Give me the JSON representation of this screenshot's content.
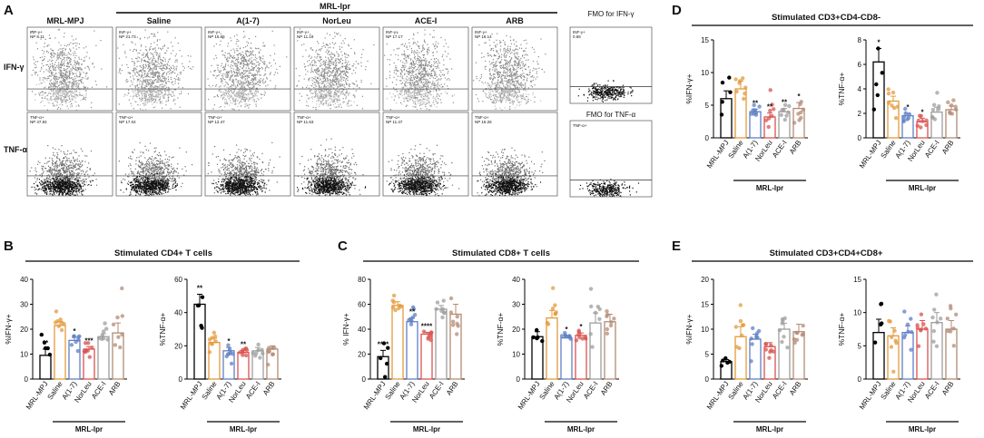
{
  "colors": {
    "mpj": "#000000",
    "saline": "#e39a3c",
    "a17": "#5f7fc6",
    "norleu": "#d9534f",
    "acei": "#9e9e9e",
    "arb": "#b38b74"
  },
  "panel_a": {
    "letter": "A",
    "strain_mpj": "MRL-MPJ",
    "strain_lpr": "MRL-lpr",
    "groups": [
      "Saline",
      "A(1-7)",
      "NorLeu",
      "ACE-I",
      "ARB"
    ],
    "row_labels": [
      "IFN-γ",
      "TNF-α"
    ],
    "fmo_titles": [
      "FMO for IFN-γ",
      "FMO for TNF-α"
    ],
    "ifn_gate_labels": [
      "INF-γ+",
      "INF-γ+",
      "INF-γ+",
      "INF-γ+",
      "INF-γ+",
      "INF-γ+"
    ],
    "tnf_gate_labels": [
      "TNF-α+",
      "TNF-α+",
      "TNF-α+",
      "TNF-α+",
      "TNF-α+",
      "TNF-α+"
    ],
    "ifn_values": [
      "NP 8.11",
      "NP 21.73",
      "NP 15.66",
      "NP 11.18",
      "NP 17.17",
      "NP 18.14"
    ],
    "tnf_values": [
      "NP 47.84",
      "NP 17.04",
      "NP 12.47",
      "NP 11.63",
      "NP 11.47",
      "NP 15.26"
    ],
    "fmo_ifn_label": "INF-γ+",
    "fmo_ifn_value": "0.66",
    "fmo_tnf_label": "TNF-α+"
  },
  "panel_b_title": "Stimulated CD4+ T cells",
  "panel_c_title": "Stimulated CD8+ T cells",
  "panel_d_title": "Stimulated CD3+CD4-CD8-",
  "panel_e_title": "Stimulated CD3+CD4+CD8+",
  "chart_data": [
    {
      "panel": "B",
      "type": "bar",
      "title": "Stimulated CD4+ T cells",
      "ylabel": "%IFN-γ+",
      "ylim": [
        0,
        40
      ],
      "yticks": [
        "0",
        "10",
        "20",
        "30",
        "40"
      ],
      "categories": [
        "MRL-MPJ",
        "Saline",
        "A(1-7)",
        "NorLeu",
        "ACE-I",
        "ARB"
      ],
      "group_label": "MRL-lpr",
      "values": [
        9.5,
        21.5,
        15.5,
        12,
        17,
        18.5
      ],
      "errors": [
        2.5,
        1.5,
        1.2,
        1,
        1.2,
        4
      ],
      "significance": [
        "**",
        "",
        "*",
        "***",
        "",
        ""
      ]
    },
    {
      "panel": "B",
      "type": "bar",
      "title": "",
      "ylabel": "%TNF-α+",
      "ylim": [
        0,
        60
      ],
      "yticks": [
        "0",
        "20",
        "40",
        "60"
      ],
      "categories": [
        "MRL-MPJ",
        "Saline",
        "A(1-7)",
        "NorLeu",
        "ACE-I",
        "ARB"
      ],
      "group_label": "MRL-lpr",
      "values": [
        45,
        22,
        17,
        16,
        17,
        18
      ],
      "errors": [
        6,
        2.5,
        2,
        1.2,
        2,
        2
      ],
      "significance": [
        "**",
        "",
        "*",
        "**",
        "",
        ""
      ]
    },
    {
      "panel": "C",
      "type": "bar",
      "title": "Stimulated CD8+ T cells",
      "ylabel": "% IFN-γ+",
      "ylim": [
        0,
        80
      ],
      "yticks": [
        "0",
        "20",
        "40",
        "60",
        "80"
      ],
      "categories": [
        "MRL-MPJ",
        "Saline",
        "A(1-7)",
        "NorLeu",
        "ACE-I",
        "ARB"
      ],
      "group_label": "MRL-lpr",
      "values": [
        18,
        59,
        46,
        36,
        56,
        52
      ],
      "errors": [
        5,
        3,
        3,
        1.5,
        3,
        8
      ],
      "significance": [
        "****",
        "",
        "**",
        "****",
        "",
        ""
      ]
    },
    {
      "panel": "C",
      "type": "bar",
      "title": "",
      "ylabel": "%TNF-α+",
      "ylim": [
        0,
        40
      ],
      "yticks": [
        "0",
        "10",
        "20",
        "30",
        "40"
      ],
      "categories": [
        "MRL-MPJ",
        "Saline",
        "A(1-7)",
        "NorLeu",
        "ACE-I",
        "ARB"
      ],
      "group_label": "MRL-lpr",
      "values": [
        17,
        24.5,
        16.5,
        17.5,
        22.5,
        23
      ],
      "errors": [
        2,
        3,
        1,
        1,
        4,
        3
      ],
      "significance": [
        "",
        "",
        "*",
        "*",
        "",
        ""
      ]
    },
    {
      "panel": "D",
      "type": "bar",
      "title": "Stimulated CD3+CD4-CD8-",
      "ylabel": "%IFN-γ+",
      "ylim": [
        0,
        15
      ],
      "yticks": [
        "0",
        "5",
        "10",
        "15"
      ],
      "categories": [
        "MRL-MPJ",
        "Saline",
        "A(1-7)",
        "NorLeu",
        "ACE-I",
        "ARB"
      ],
      "group_label": "MRL-lpr",
      "values": [
        6,
        7.5,
        4,
        3.2,
        4,
        4.5
      ],
      "errors": [
        1.2,
        1.2,
        0.4,
        0.6,
        0.5,
        0.9
      ],
      "significance": [
        "",
        "",
        "**",
        "**",
        "**",
        "*"
      ]
    },
    {
      "panel": "D",
      "type": "bar",
      "title": "",
      "ylabel": "%TNF-α+",
      "ylim": [
        0,
        8
      ],
      "yticks": [
        "0",
        "2",
        "4",
        "6",
        "8"
      ],
      "categories": [
        "MRL-MPJ",
        "Saline",
        "A(1-7)",
        "NorLeu",
        "ACE-I",
        "ARB"
      ],
      "group_label": "MRL-lpr",
      "values": [
        6.2,
        3,
        1.8,
        1.3,
        2.1,
        2.3
      ],
      "errors": [
        1.1,
        0.4,
        0.2,
        0.3,
        0.4,
        0.3
      ],
      "significance": [
        "*",
        "",
        "*",
        "*",
        "",
        ""
      ]
    },
    {
      "panel": "E",
      "type": "bar",
      "title": "Stimulated CD3+CD4+CD8+",
      "ylabel": "%IFN-γ+",
      "ylim": [
        0,
        20
      ],
      "yticks": [
        "0",
        "5",
        "10",
        "15",
        "20"
      ],
      "categories": [
        "MRL-MPJ",
        "Saline",
        "A(1-7)",
        "NorLeu",
        "ACE-I",
        "ARB"
      ],
      "group_label": "MRL-lpr",
      "values": [
        3.5,
        8.5,
        8,
        6.5,
        10,
        9.5
      ],
      "errors": [
        0.4,
        2,
        1,
        0.8,
        1.2,
        1.5
      ],
      "significance": [
        "",
        "",
        "",
        "",
        "",
        ""
      ]
    },
    {
      "panel": "E",
      "type": "bar",
      "title": "",
      "ylabel": "%TNF-α+",
      "ylim": [
        0,
        15
      ],
      "yticks": [
        "0",
        "5",
        "10",
        "15"
      ],
      "categories": [
        "MRL-MPJ",
        "Saline",
        "A(1-7)",
        "NorLeu",
        "ACE-I",
        "ARB"
      ],
      "group_label": "MRL-lpr",
      "values": [
        7,
        6.5,
        7,
        7.5,
        8.5,
        7.5
      ],
      "errors": [
        2,
        1.2,
        1,
        1.3,
        1.5,
        1.3
      ],
      "significance": [
        "",
        "",
        "",
        "",
        "",
        ""
      ]
    }
  ]
}
